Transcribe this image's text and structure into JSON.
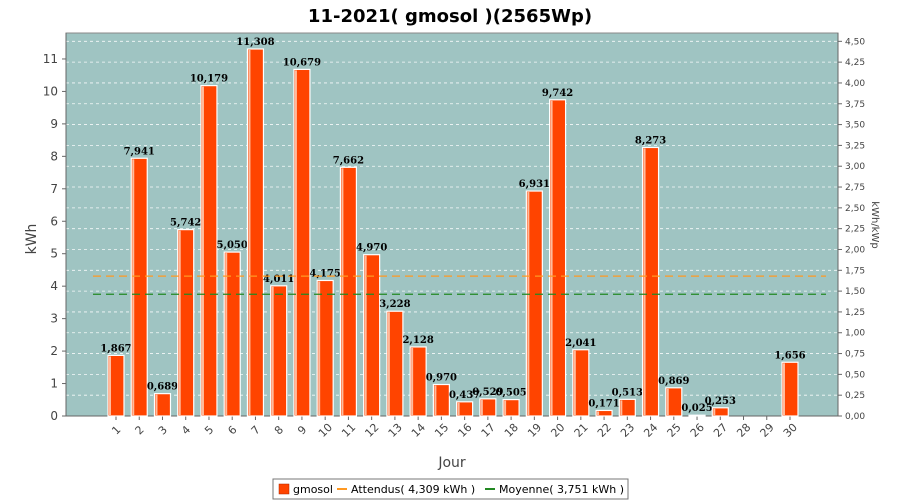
{
  "chart_data": {
    "type": "bar",
    "title": "11-2021( gmosol )(2565Wp)",
    "xlabel": "Jour",
    "ylabel": "kWh",
    "y2label": "kWh/kWp",
    "categories": [
      "1",
      "2",
      "3",
      "4",
      "5",
      "6",
      "7",
      "8",
      "9",
      "10",
      "11",
      "12",
      "13",
      "14",
      "15",
      "16",
      "17",
      "18",
      "19",
      "20",
      "21",
      "22",
      "23",
      "24",
      "25",
      "26",
      "27",
      "28",
      "29",
      "30"
    ],
    "series": [
      {
        "name": "gmosol",
        "color": "#ff4400",
        "values": [
          1.867,
          7.941,
          0.689,
          5.742,
          10.179,
          5.05,
          11.308,
          4.011,
          10.679,
          4.175,
          7.662,
          4.97,
          3.228,
          2.128,
          0.97,
          0.437,
          0.529,
          0.505,
          6.931,
          9.742,
          2.041,
          0.171,
          0.513,
          8.273,
          0.869,
          0.025,
          0.253,
          null,
          null,
          1.656
        ],
        "labels": [
          "1,867",
          "7,941",
          "0,689",
          "5,742",
          "10,179",
          "5,050",
          "11,308",
          "4,011",
          "10,679",
          "4,175",
          "7,662",
          "4,970",
          "3,228",
          "2,128",
          "0,970",
          "0,437",
          "0,529",
          "0,505",
          "6,931",
          "9,742",
          "2,041",
          "0,171",
          "0,513",
          "8,273",
          "0,869",
          "0,025",
          "0,253",
          "",
          "",
          "1,656"
        ]
      }
    ],
    "reference_lines": [
      {
        "name": "Attendus( 4,309 kWh )",
        "value": 4.309,
        "color": "#ff9922",
        "style": "dashed"
      },
      {
        "name": "Moyenne( 3,751 kWh )",
        "value": 3.751,
        "color": "#228822",
        "style": "dashed"
      }
    ],
    "ylim": [
      0,
      11.8
    ],
    "yticks": [
      "0",
      "1",
      "2",
      "3",
      "4",
      "5",
      "6",
      "7",
      "8",
      "9",
      "10",
      "11"
    ],
    "y2lim": [
      0,
      4.6
    ],
    "y2ticks": [
      "0,00",
      "0,25",
      "0,50",
      "0,75",
      "1,00",
      "1,25",
      "1,50",
      "1,75",
      "2,00",
      "2,25",
      "2,50",
      "2,75",
      "3,00",
      "3,25",
      "3,50",
      "3,75",
      "4,00",
      "4,25",
      "4,50"
    ],
    "grid": true,
    "legend_position": "bottom",
    "plot_background": "#9fc4c2"
  }
}
